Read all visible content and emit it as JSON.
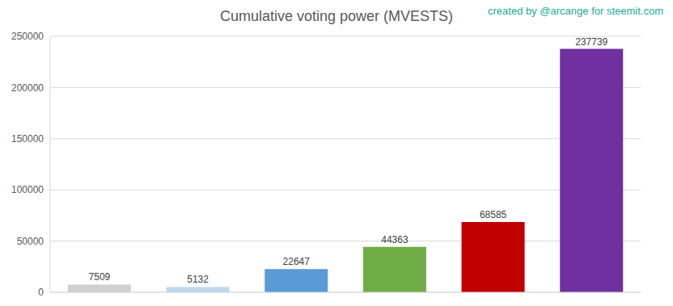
{
  "chart_data": {
    "type": "bar",
    "title": "Cumulative voting power (MVESTS)",
    "annotations": [
      "created by @arcange for steemit.com"
    ],
    "categories": [
      null,
      null,
      null,
      null,
      null,
      null
    ],
    "values": [
      7509,
      5132,
      22647,
      44363,
      68585,
      237739
    ],
    "colors": [
      "#d0d0d0",
      "#bdd7ee",
      "#5b9bd5",
      "#70ad47",
      "#c00000",
      "#7030a0"
    ],
    "ylim": [
      0,
      250000
    ],
    "yticks": [
      0,
      50000,
      100000,
      150000,
      200000,
      250000
    ],
    "grid": true,
    "data_labels": true,
    "tick_labels": "y"
  }
}
